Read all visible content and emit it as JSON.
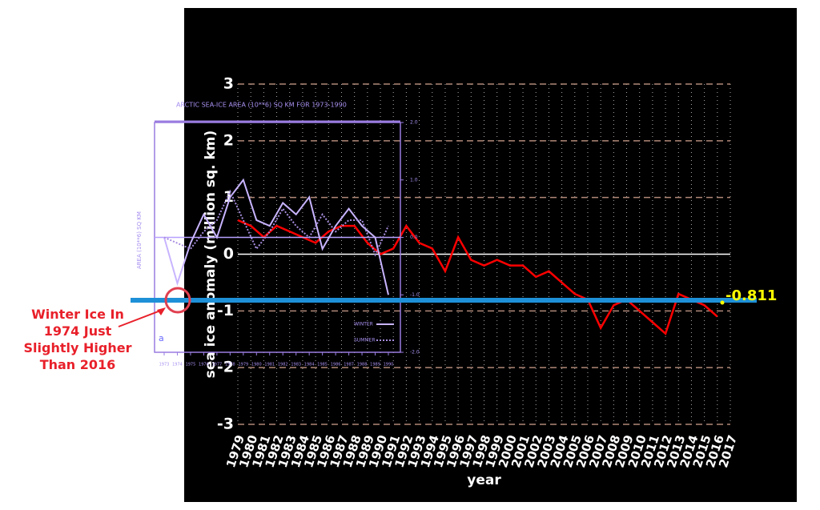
{
  "chart_data": [
    {
      "type": "line",
      "y_label": "sea ice anomaly (million sq. km)",
      "x_label": "year",
      "x": [
        1979,
        1980,
        1981,
        1982,
        1983,
        1984,
        1985,
        1986,
        1987,
        1988,
        1989,
        1990,
        1991,
        1992,
        1993,
        1994,
        1995,
        1996,
        1997,
        1998,
        1999,
        2000,
        2001,
        2002,
        2003,
        2004,
        2005,
        2006,
        2007,
        2008,
        2009,
        2010,
        2011,
        2012,
        2013,
        2014,
        2015,
        2016
      ],
      "series": [
        {
          "color": "#ff0000",
          "values": [
            0.6,
            0.5,
            0.3,
            0.5,
            0.4,
            0.3,
            0.2,
            0.4,
            0.5,
            0.5,
            0.2,
            0.0,
            0.1,
            0.5,
            0.2,
            0.1,
            -0.3,
            0.3,
            -0.1,
            -0.2,
            -0.1,
            -0.2,
            -0.2,
            -0.4,
            -0.3,
            -0.5,
            -0.7,
            -0.8,
            -1.3,
            -0.9,
            -0.8,
            -1.0,
            -1.2,
            -1.4,
            -0.7,
            -0.8,
            -0.9,
            -1.1
          ]
        }
      ],
      "xlim": [
        1979,
        2017
      ],
      "xticks": [
        1979,
        1980,
        1981,
        1982,
        1983,
        1984,
        1985,
        1986,
        1987,
        1988,
        1989,
        1990,
        1991,
        1992,
        1993,
        1994,
        1995,
        1996,
        1997,
        1998,
        1999,
        2000,
        2001,
        2002,
        2003,
        2004,
        2005,
        2006,
        2007,
        2008,
        2009,
        2010,
        2011,
        2012,
        2013,
        2014,
        2015,
        2016,
        2017
      ],
      "ylim": [
        -3,
        3
      ],
      "yticks": [
        -3,
        -2,
        -1,
        0,
        1,
        2,
        3
      ],
      "grid": true,
      "reference_line": {
        "value": -0.811,
        "color": "#1e90d8"
      }
    },
    {
      "type": "line",
      "title": "ARCTIC SEA-ICE AREA (10**6) SQ KM FOR 1973-1990",
      "y_label": "AREA (10**6) SQ KM",
      "panel_label": "a",
      "x": [
        1973,
        1974,
        1975,
        1976,
        1977,
        1978,
        1979,
        1980,
        1981,
        1982,
        1983,
        1984,
        1985,
        1986,
        1987,
        1988,
        1989,
        1990
      ],
      "series": [
        {
          "name": "WINTER",
          "color": "#c8b4ff",
          "dashed": false,
          "values": [
            0.0,
            -0.8,
            -0.1,
            0.4,
            0.0,
            0.7,
            1.0,
            0.3,
            0.2,
            0.6,
            0.4,
            0.7,
            -0.2,
            0.2,
            0.5,
            0.2,
            0.0,
            -1.0
          ]
        },
        {
          "name": "SUMMER",
          "color": "#a88ee0",
          "dashed": true,
          "values": [
            0.0,
            -0.1,
            -0.2,
            0.1,
            0.3,
            0.8,
            0.3,
            -0.2,
            0.1,
            0.5,
            0.2,
            0.0,
            0.4,
            0.1,
            0.3,
            0.3,
            -0.3,
            0.2
          ]
        }
      ],
      "xlim": [
        1973,
        1990
      ],
      "xticks": [
        1973,
        1974,
        1975,
        1976,
        1977,
        1978,
        1979,
        1980,
        1981,
        1982,
        1983,
        1984,
        1985,
        1986,
        1987,
        1988,
        1989,
        1990
      ],
      "ylim": [
        -2,
        2
      ],
      "yticks": [
        {
          "value": -2,
          "label": "-2.0"
        },
        {
          "value": -1,
          "label": "-1.0"
        },
        {
          "value": 0,
          "label": "0.0"
        },
        {
          "value": 1,
          "label": "1.0"
        },
        {
          "value": 2,
          "label": "2.0"
        }
      ]
    }
  ],
  "annotation": {
    "text": "Winter Ice In 1974 Just Slightly Higher Than 2016"
  }
}
